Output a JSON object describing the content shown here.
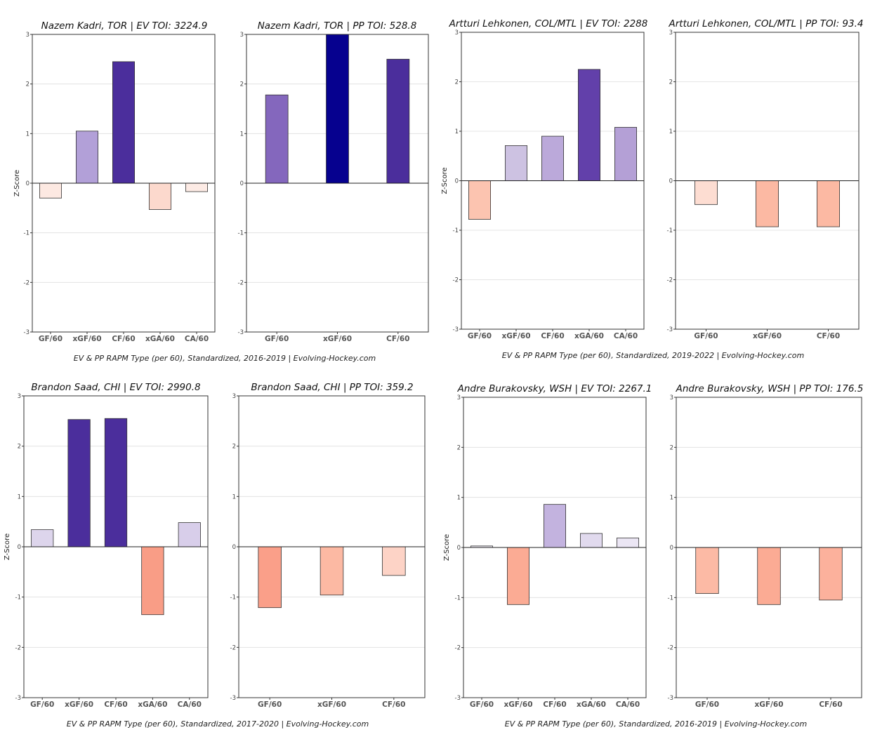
{
  "colors": {
    "axis": "#333333",
    "grid": "#dddddd",
    "tick_text": "#444444",
    "label_text": "#555555",
    "title_text": "#111111",
    "footer_text": "#222222"
  },
  "captions": [
    "EV & PP RAPM Type (per 60), Standardized, 2016-2019    |    Evolving-Hockey.com",
    "EV & PP RAPM Type (per 60), Standardized, 2019-2022    |    Evolving-Hockey.com",
    "EV & PP RAPM Type (per 60), Standardized, 2017-2020    |    Evolving-Hockey.com",
    "EV & PP RAPM Type (per 60), Standardized, 2016-2019    |    Evolving-Hockey.com"
  ],
  "chart_data": [
    {
      "type": "bar",
      "title": "Nazem Kadri, TOR  |  EV TOI: 3224.9",
      "ylabel": "Z-Score",
      "ylim": [
        -3,
        3
      ],
      "yticks": [
        "3",
        "2",
        "1",
        "0",
        "-1",
        "-2",
        "-3"
      ],
      "categories": [
        "GF/60",
        "xGF/60",
        "CF/60",
        "xGA/60",
        "CA/60"
      ],
      "values": [
        -0.3,
        1.05,
        2.45,
        -0.53,
        -0.17
      ],
      "colors": [
        "#fde9e2",
        "#b2a0d8",
        "#4b2e9c",
        "#fcd9cd",
        "#fdebe5"
      ]
    },
    {
      "type": "bar",
      "title": "Nazem Kadri, TOR  |  PP TOI: 528.8",
      "ylabel": "",
      "ylim": [
        -3,
        3
      ],
      "yticks": [
        "3",
        "2",
        "1",
        "0",
        "-1",
        "-2",
        "-3"
      ],
      "categories": [
        "GF/60",
        "xGF/60",
        "CF/60"
      ],
      "values": [
        1.78,
        3.0,
        2.5
      ],
      "colors": [
        "#8467bd",
        "#06018f",
        "#4b2e9c"
      ]
    },
    {
      "type": "bar",
      "title": "Artturi Lehkonen, COL/MTL  |  EV TOI: 2288",
      "ylabel": "Z-Score",
      "ylim": [
        -3,
        3
      ],
      "yticks": [
        "3",
        "2",
        "1",
        "0",
        "-1",
        "-2",
        "-3"
      ],
      "categories": [
        "GF/60",
        "xGF/60",
        "CF/60",
        "xGA/60",
        "CA/60"
      ],
      "values": [
        -0.78,
        0.71,
        0.9,
        2.25,
        1.08
      ],
      "colors": [
        "#fcc4b0",
        "#cdc2e2",
        "#bba9da",
        "#6240aa",
        "#b4a0d6"
      ]
    },
    {
      "type": "bar",
      "title": "Artturi Lehkonen, COL/MTL  |  PP TOI: 93.4",
      "ylabel": "",
      "ylim": [
        -3,
        3
      ],
      "yticks": [
        "3",
        "2",
        "1",
        "0",
        "-1",
        "-2",
        "-3"
      ],
      "categories": [
        "GF/60",
        "xGF/60",
        "CF/60"
      ],
      "values": [
        -0.48,
        -0.93,
        -0.93
      ],
      "colors": [
        "#fdddd2",
        "#fcb9a3",
        "#fcb9a3"
      ]
    },
    {
      "type": "bar",
      "title": "Brandon Saad, CHI  |  EV TOI: 2990.8",
      "ylabel": "Z-Score",
      "ylim": [
        -3,
        3
      ],
      "yticks": [
        "3",
        "2",
        "1",
        "0",
        "-1",
        "-2",
        "-3"
      ],
      "categories": [
        "GF/60",
        "xGF/60",
        "CF/60",
        "xGA/60",
        "CA/60"
      ],
      "values": [
        0.34,
        2.53,
        2.55,
        -1.35,
        0.48
      ],
      "colors": [
        "#ddd5ec",
        "#4b2e9c",
        "#4b2e9c",
        "#f99d86",
        "#d8ceea"
      ]
    },
    {
      "type": "bar",
      "title": "Brandon Saad, CHI  |  PP TOI: 359.2",
      "ylabel": "",
      "ylim": [
        -3,
        3
      ],
      "yticks": [
        "3",
        "2",
        "1",
        "0",
        "-1",
        "-2",
        "-3"
      ],
      "categories": [
        "GF/60",
        "xGF/60",
        "CF/60"
      ],
      "values": [
        -1.21,
        -0.96,
        -0.57
      ],
      "colors": [
        "#fa9f89",
        "#fcb9a3",
        "#fdd3c6"
      ]
    },
    {
      "type": "bar",
      "title": "Andre Burakovsky, WSH  |  EV TOI: 2267.1",
      "ylabel": "Z-Score",
      "ylim": [
        -3,
        3
      ],
      "yticks": [
        "3",
        "2",
        "1",
        "0",
        "-1",
        "-2",
        "-3"
      ],
      "categories": [
        "GF/60",
        "xGF/60",
        "CF/60",
        "xGA/60",
        "CA/60"
      ],
      "values": [
        0.03,
        -1.14,
        0.86,
        0.28,
        0.19
      ],
      "colors": [
        "#f2eff8",
        "#fbab94",
        "#c3b3df",
        "#e1daee",
        "#ebe6f4"
      ]
    },
    {
      "type": "bar",
      "title": "Andre Burakovsky, WSH  |  PP TOI: 176.5",
      "ylabel": "",
      "ylim": [
        -3,
        3
      ],
      "yticks": [
        "3",
        "2",
        "1",
        "0",
        "-1",
        "-2",
        "-3"
      ],
      "categories": [
        "GF/60",
        "xGF/60",
        "CF/60"
      ],
      "values": [
        -0.92,
        -1.14,
        -1.05
      ],
      "colors": [
        "#fcbaa5",
        "#fbab94",
        "#fcb19c"
      ]
    }
  ]
}
